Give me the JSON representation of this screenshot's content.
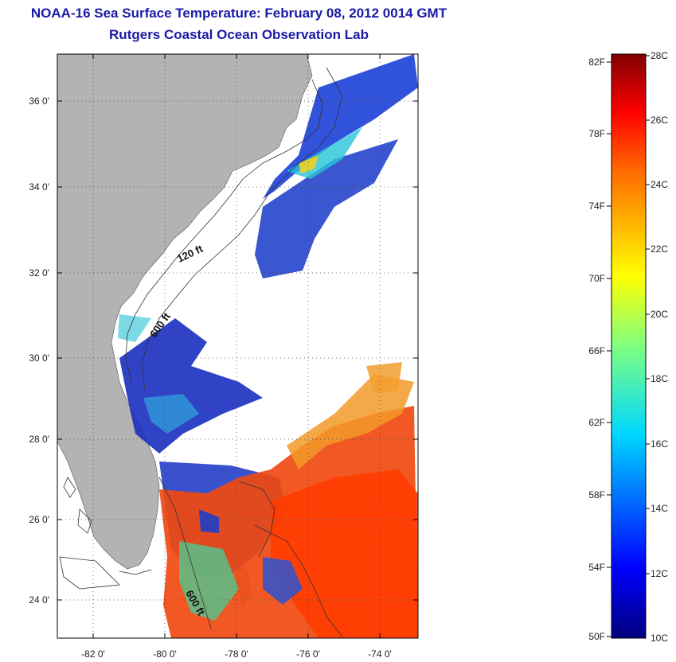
{
  "header": {
    "title": "NOAA-16 Sea Surface Temperature:  February 08, 2012 0014 GMT",
    "subtitle": "Rutgers Coastal Ocean Observation Lab"
  },
  "map": {
    "lat_labels": [
      "36 0'",
      "34 0'",
      "32 0'",
      "30 0'",
      "28 0'",
      "26 0'",
      "24 0'"
    ],
    "lon_labels": [
      "-82 0'",
      "-80 0'",
      "-78 0'",
      "-76 0'",
      "-74 0'"
    ],
    "depth_labels": [
      "120 ft",
      "600 ft",
      "600 ft"
    ],
    "land_color": "#b3b3b3",
    "water_color": "#ffffff"
  },
  "colorbar": {
    "fahrenheit_labels": [
      "82F",
      "78F",
      "74F",
      "70F",
      "66F",
      "62F",
      "58F",
      "54F",
      "50F"
    ],
    "celsius_labels": [
      "28C",
      "26C",
      "24C",
      "22C",
      "20C",
      "18C",
      "16C",
      "14C",
      "12C",
      "10C"
    ],
    "range_c": [
      10,
      28
    ],
    "range_f": [
      50,
      82
    ]
  }
}
